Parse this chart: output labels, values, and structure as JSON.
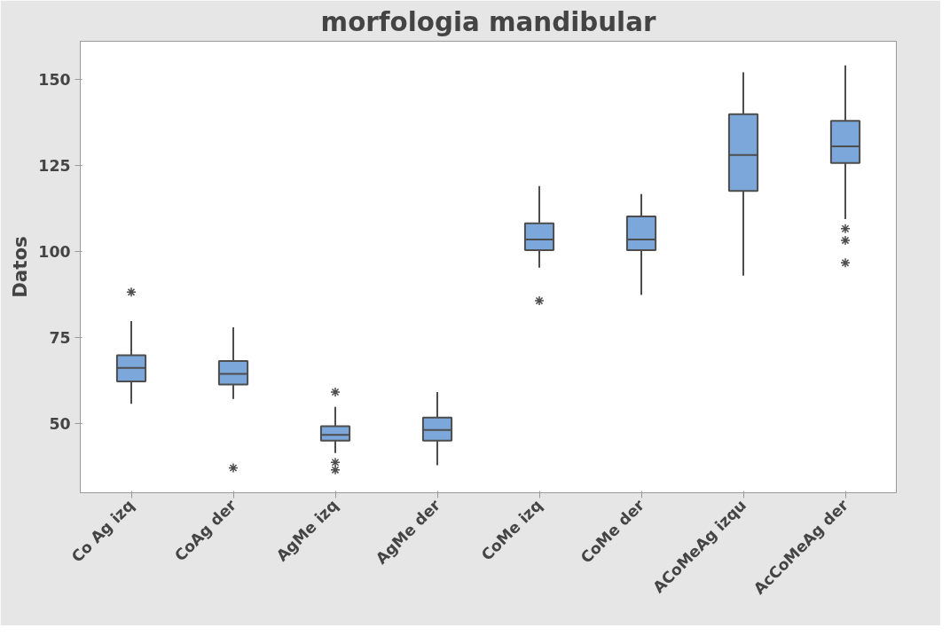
{
  "chart_data": {
    "type": "box",
    "title": "morfologia mandibular",
    "ylabel": "Datos",
    "categories": [
      "Co Ag izq",
      "CoAg der",
      "AgMe izq",
      "AgMe der",
      "CoMe izq",
      "CoMe der",
      "ACoMeAg izqu",
      "AcCoMeAg der"
    ],
    "boxes": [
      {
        "low": 55.8,
        "q1": 62.3,
        "median": 66.2,
        "q3": 69.9,
        "high": 79.8,
        "outliers": [
          88.2
        ]
      },
      {
        "low": 57.2,
        "q1": 61.4,
        "median": 64.5,
        "q3": 68.2,
        "high": 78,
        "outliers": [
          37.2
        ]
      },
      {
        "low": 41.5,
        "q1": 45.1,
        "median": 46.8,
        "q3": 49.3,
        "high": 54.9,
        "outliers": [
          59.2,
          38.8,
          36.6
        ]
      },
      {
        "low": 38,
        "q1": 45.1,
        "median": 48.2,
        "q3": 51.8,
        "high": 59.2
      },
      {
        "low": 95.3,
        "q1": 100.4,
        "median": 103.5,
        "q3": 108.2,
        "high": 119,
        "outliers": [
          85.7
        ]
      },
      {
        "low": 87.4,
        "q1": 100.4,
        "median": 103.5,
        "q3": 110.2,
        "high": 116.7
      },
      {
        "low": 93,
        "q1": 117.6,
        "median": 128,
        "q3": 139.8,
        "high": 152
      },
      {
        "low": 109.4,
        "q1": 125.7,
        "median": 130.5,
        "q3": 137.9,
        "high": 154,
        "outliers": [
          106.6,
          103.2,
          96.7
        ]
      }
    ],
    "color": "#7ba7db",
    "ylim": [
      30,
      161
    ],
    "yticks": [
      50,
      75,
      100,
      125,
      150
    ],
    "grid": false,
    "marker": "asterisk"
  }
}
